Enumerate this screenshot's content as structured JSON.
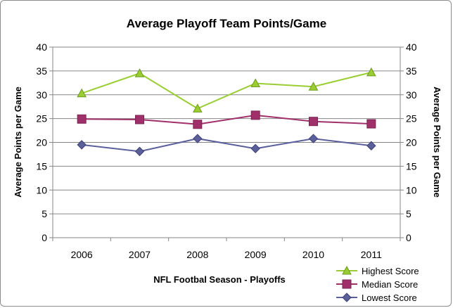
{
  "chart_data": {
    "type": "line",
    "title": "Average Playoff Team Points/Game",
    "xlabel": "NFL Footbal Season - Playoffs",
    "ylabel": "Average Points per Game",
    "ylabel_right": "Average Points per Game",
    "categories": [
      "2006",
      "2007",
      "2008",
      "2009",
      "2010",
      "2011"
    ],
    "ylim": [
      0,
      40
    ],
    "yticks": [
      "0",
      "5",
      "10",
      "15",
      "20",
      "25",
      "30",
      "35",
      "40"
    ],
    "grid": true,
    "legend_position": "bottom-right",
    "series": [
      {
        "name": "Highest Score",
        "values": [
          30.3,
          34.5,
          27.1,
          32.4,
          31.7,
          34.7
        ],
        "color": "#9acd32",
        "marker": "triangle"
      },
      {
        "name": "Median Score",
        "values": [
          24.9,
          24.8,
          23.8,
          25.7,
          24.4,
          23.9
        ],
        "color": "#a0306a",
        "marker": "square"
      },
      {
        "name": "Lowest Score",
        "values": [
          19.5,
          18.1,
          20.8,
          18.7,
          20.8,
          19.3
        ],
        "color": "#5b5f9a",
        "marker": "diamond"
      }
    ]
  }
}
